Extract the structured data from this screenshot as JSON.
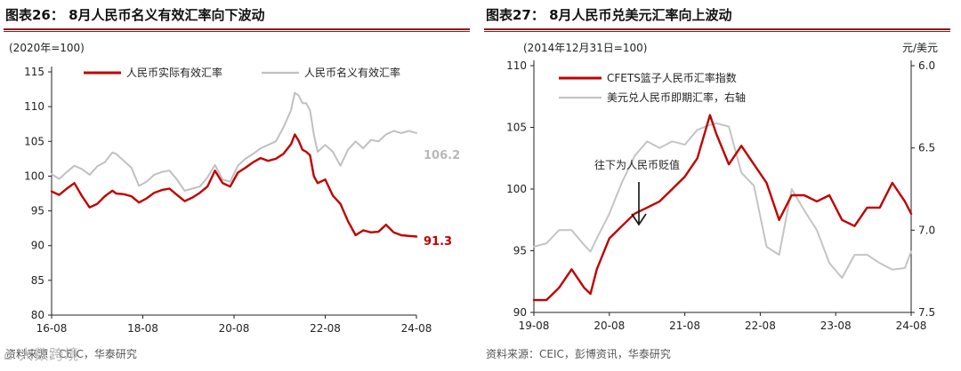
{
  "chart_data": [
    {
      "type": "line",
      "title": "图表26： 8月人民币名义有效汇率向下波动",
      "base_note": "(2020年=100)",
      "x_ticks": [
        "16-08",
        "18-08",
        "20-08",
        "22-08",
        "24-08"
      ],
      "xlim": [
        "2016-08",
        "2024-08"
      ],
      "y_ticks": [
        80,
        85,
        90,
        95,
        100,
        105,
        110,
        115
      ],
      "ylim": [
        80,
        115
      ],
      "grid": false,
      "legend_position": "top",
      "series": [
        {
          "name": "人民币实际有效汇率",
          "color": "#c00000",
          "x": [
            "2016-08",
            "2016-10",
            "2016-12",
            "2017-02",
            "2017-04",
            "2017-06",
            "2017-08",
            "2017-10",
            "2017-12",
            "2018-01",
            "2018-03",
            "2018-05",
            "2018-07",
            "2018-09",
            "2018-11",
            "2019-01",
            "2019-03",
            "2019-05",
            "2019-07",
            "2019-09",
            "2019-11",
            "2020-01",
            "2020-03",
            "2020-05",
            "2020-07",
            "2020-09",
            "2020-11",
            "2021-01",
            "2021-03",
            "2021-05",
            "2021-07",
            "2021-09",
            "2021-11",
            "2021-12",
            "2022-01",
            "2022-02",
            "2022-03",
            "2022-04",
            "2022-05",
            "2022-06",
            "2022-08",
            "2022-10",
            "2022-12",
            "2023-02",
            "2023-04",
            "2023-06",
            "2023-08",
            "2023-10",
            "2023-12",
            "2024-02",
            "2024-04",
            "2024-06",
            "2024-08"
          ],
          "values": [
            97.8,
            97.3,
            98.2,
            99.0,
            97.1,
            95.5,
            96.0,
            97.1,
            97.9,
            97.5,
            97.4,
            97.1,
            96.2,
            96.8,
            97.6,
            98.0,
            98.2,
            97.3,
            96.4,
            96.9,
            97.6,
            98.5,
            100.8,
            99.0,
            98.5,
            100.5,
            101.2,
            102.0,
            102.6,
            102.2,
            102.5,
            103.2,
            104.6,
            106.0,
            105.1,
            103.8,
            103.5,
            103.0,
            100.0,
            99.0,
            99.5,
            97.2,
            96.0,
            93.5,
            91.5,
            92.2,
            91.9,
            92.0,
            93.0,
            91.9,
            91.5,
            91.4,
            91.3
          ]
        },
        {
          "name": "人民币名义有效汇率",
          "color": "#c0c0c0",
          "x": [
            "2016-08",
            "2016-10",
            "2016-12",
            "2017-02",
            "2017-04",
            "2017-06",
            "2017-08",
            "2017-10",
            "2017-12",
            "2018-01",
            "2018-03",
            "2018-05",
            "2018-07",
            "2018-09",
            "2018-11",
            "2019-01",
            "2019-03",
            "2019-05",
            "2019-07",
            "2019-09",
            "2019-11",
            "2020-01",
            "2020-03",
            "2020-05",
            "2020-07",
            "2020-09",
            "2020-11",
            "2021-01",
            "2021-03",
            "2021-05",
            "2021-07",
            "2021-09",
            "2021-11",
            "2021-12",
            "2022-01",
            "2022-02",
            "2022-03",
            "2022-04",
            "2022-05",
            "2022-06",
            "2022-08",
            "2022-10",
            "2022-12",
            "2023-02",
            "2023-04",
            "2023-06",
            "2023-08",
            "2023-10",
            "2023-12",
            "2024-02",
            "2024-04",
            "2024-06",
            "2024-08"
          ],
          "values": [
            100.3,
            99.6,
            100.6,
            101.5,
            101.0,
            100.2,
            101.4,
            102.0,
            103.4,
            103.2,
            102.2,
            101.2,
            98.6,
            99.2,
            100.2,
            100.6,
            100.8,
            99.5,
            97.9,
            98.2,
            98.5,
            99.8,
            101.6,
            99.5,
            99.2,
            101.5,
            102.5,
            103.2,
            104.0,
            104.5,
            105.0,
            107.0,
            109.5,
            112.0,
            111.6,
            110.5,
            110.5,
            109.5,
            106.0,
            103.5,
            104.5,
            103.5,
            101.5,
            103.8,
            105.0,
            104.0,
            105.2,
            105.0,
            106.0,
            106.5,
            106.2,
            106.5,
            106.2
          ]
        }
      ],
      "annotations": [
        {
          "text": "106.2",
          "color": "#b8b8b8"
        },
        {
          "text": "91.3",
          "color": "#c00000"
        }
      ],
      "source": "资料来源：CEIC，华泰研究"
    },
    {
      "type": "line",
      "title": "图表27： 8月人民币兑美元汇率向上波动",
      "base_note": "(2014年12月31日=100)",
      "x_ticks": [
        "19-08",
        "20-08",
        "21-08",
        "22-08",
        "23-08",
        "24-08"
      ],
      "xlim": [
        "2019-08",
        "2024-08"
      ],
      "y_ticks": [
        90,
        95,
        100,
        105,
        110
      ],
      "ylim": [
        90,
        110
      ],
      "y2_label": "元/美元",
      "y2_ticks": [
        "6.0",
        "6.5",
        "7.0",
        "7.5"
      ],
      "y2lim": [
        6.0,
        7.5
      ],
      "y2_inverted": true,
      "grid": false,
      "legend_position": "top-left",
      "series": [
        {
          "name": "CFETS篮子人民币汇率指数",
          "color": "#c00000",
          "axis": "left",
          "x": [
            "2019-08",
            "2019-10",
            "2019-12",
            "2020-02",
            "2020-04",
            "2020-05",
            "2020-06",
            "2020-08",
            "2020-10",
            "2020-12",
            "2021-02",
            "2021-04",
            "2021-06",
            "2021-08",
            "2021-10",
            "2021-12",
            "2022-01",
            "2022-03",
            "2022-05",
            "2022-07",
            "2022-09",
            "2022-11",
            "2023-01",
            "2023-03",
            "2023-05",
            "2023-07",
            "2023-09",
            "2023-11",
            "2024-01",
            "2024-03",
            "2024-05",
            "2024-07",
            "2024-08"
          ],
          "values": [
            91.0,
            91.0,
            92.0,
            93.5,
            92.0,
            91.5,
            93.5,
            96.0,
            97.0,
            98.0,
            98.5,
            99.0,
            100.0,
            101.0,
            102.5,
            106.0,
            104.5,
            102.0,
            103.5,
            102.0,
            100.5,
            97.5,
            99.5,
            99.5,
            99.0,
            99.5,
            97.5,
            97.0,
            98.5,
            98.5,
            100.5,
            99.0,
            98.0
          ]
        },
        {
          "name": "美元兑人民币即期汇率，右轴",
          "color": "#c4c4c4",
          "axis": "right",
          "x": [
            "2019-08",
            "2019-10",
            "2019-12",
            "2020-02",
            "2020-04",
            "2020-05",
            "2020-06",
            "2020-08",
            "2020-10",
            "2020-12",
            "2021-02",
            "2021-04",
            "2021-06",
            "2021-08",
            "2021-10",
            "2021-12",
            "2022-01",
            "2022-03",
            "2022-05",
            "2022-07",
            "2022-09",
            "2022-11",
            "2023-01",
            "2023-03",
            "2023-05",
            "2023-07",
            "2023-09",
            "2023-11",
            "2024-01",
            "2024-03",
            "2024-05",
            "2024-07",
            "2024-08"
          ],
          "values": [
            7.1,
            7.08,
            7.0,
            7.0,
            7.09,
            7.13,
            7.05,
            6.9,
            6.71,
            6.55,
            6.46,
            6.5,
            6.46,
            6.48,
            6.39,
            6.36,
            6.35,
            6.37,
            6.65,
            6.73,
            7.1,
            7.15,
            6.75,
            6.88,
            7.0,
            7.2,
            7.29,
            7.15,
            7.15,
            7.2,
            7.24,
            7.23,
            7.13
          ]
        }
      ],
      "annotations": [
        {
          "text": "往下为人民币贬值",
          "color": "#222222"
        }
      ],
      "source": "资料来源：CEIC，彭博资讯，华泰研究"
    }
  ],
  "watermark": "大数跨境"
}
